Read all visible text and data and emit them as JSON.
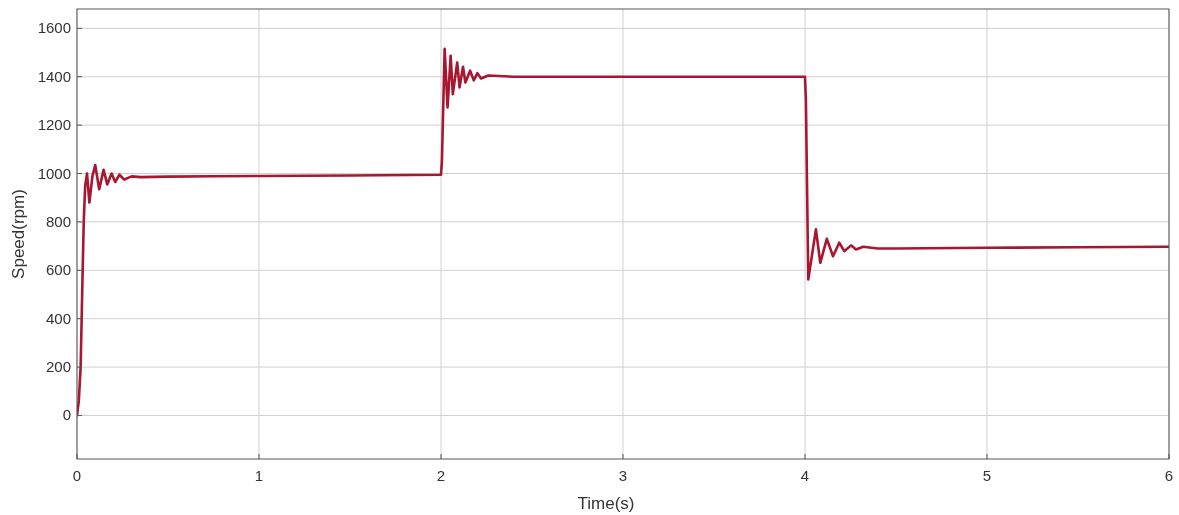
{
  "chart_data": {
    "type": "line",
    "xlabel": "Time(s)",
    "ylabel": "Speed(rpm)",
    "xlim": [
      0,
      6
    ],
    "ylim": [
      -180,
      1680
    ],
    "xticks": [
      0,
      1,
      2,
      3,
      4,
      5,
      6
    ],
    "yticks": [
      0,
      200,
      400,
      600,
      800,
      1000,
      1200,
      1400,
      1600
    ],
    "grid": true,
    "line_style": "solid",
    "marker": "none",
    "series": [
      {
        "color": "#a8162f",
        "x": [
          0,
          0.01,
          0.02,
          0.03,
          0.037,
          0.045,
          0.055,
          0.068,
          0.085,
          0.1,
          0.122,
          0.146,
          0.166,
          0.19,
          0.21,
          0.233,
          0.26,
          0.3,
          0.35,
          0.5,
          0.75,
          1.0,
          1.5,
          2.0,
          2.005,
          2.02,
          2.036,
          2.053,
          2.065,
          2.089,
          2.102,
          2.121,
          2.134,
          2.16,
          2.18,
          2.2,
          2.22,
          2.26,
          2.4,
          3.0,
          3.5,
          4.0,
          4.005,
          4.018,
          4.06,
          4.084,
          4.12,
          4.154,
          4.188,
          4.216,
          4.253,
          4.28,
          4.32,
          4.4,
          4.5,
          5.0,
          5.5,
          6.0
        ],
        "values": [
          0,
          60,
          200,
          560,
          800,
          950,
          1000,
          880,
          990,
          1035,
          935,
          1015,
          955,
          1000,
          965,
          995,
          975,
          988,
          985,
          987,
          989,
          990,
          992,
          995,
          1050,
          1515,
          1273,
          1487,
          1328,
          1459,
          1356,
          1441,
          1376,
          1425,
          1385,
          1415,
          1393,
          1405,
          1400,
          1400,
          1400,
          1400,
          1300,
          562,
          769,
          631,
          730,
          658,
          714,
          679,
          703,
          686,
          697,
          690,
          690,
          693,
          695,
          697
        ]
      }
    ]
  }
}
